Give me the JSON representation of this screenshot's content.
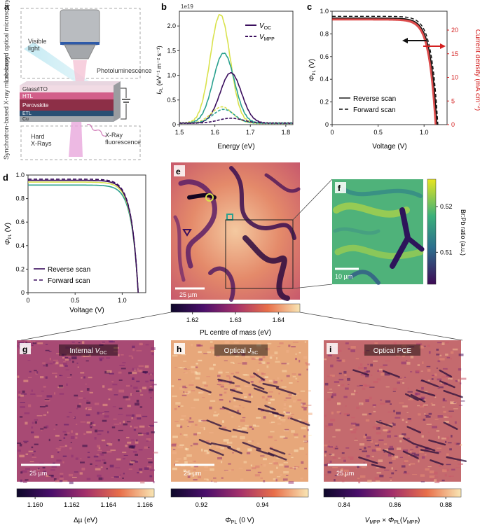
{
  "panels": {
    "a": "a",
    "b": "b",
    "c": "c",
    "d": "d",
    "e": "e",
    "f": "f",
    "g": "g",
    "h": "h",
    "i": "i"
  },
  "schematic": {
    "lab_label": "Lab-based optical microscopy",
    "sync_label": "Synchrotron-based X-ray microscopy",
    "visible_light": "Visible light",
    "photoluminescence": "Photoluminescence",
    "layers": [
      "Glass/ITO",
      "HTL",
      "Perovskite",
      "ETL",
      "Cu"
    ],
    "hard_xrays": "Hard X-Rays",
    "xray_fluor": "X-Ray fluorescence"
  },
  "colors": {
    "yellow_series": "#d9e24c",
    "teal_series": "#2aa18f",
    "purple_series": "#3b0f5e",
    "red_jv": "#d42020",
    "black": "#111111",
    "inferno_dark": "#1a0a2e",
    "inferno_light": "#f7e1b0"
  },
  "chart_data": [
    {
      "id": "b",
      "type": "line",
      "title": "",
      "xlabel": "Energy (eV)",
      "ylabel": "I_PL (eV⁻¹ m⁻² s⁻¹)",
      "exponent": "1e19",
      "xlim": [
        1.5,
        1.82
      ],
      "ylim": [
        0,
        2.3
      ],
      "xticks": [
        "1.5",
        "1.6",
        "1.7",
        "1.8"
      ],
      "yticks": [
        "0",
        "0.5",
        "1.0",
        "1.5",
        "2.0"
      ],
      "legend": [
        "V_OC",
        "V_MPP"
      ],
      "series": [
        {
          "name": "yellow-voc",
          "color": "#d9e24c",
          "dash": false,
          "peak": 2.2,
          "center": 1.615,
          "width": 0.028
        },
        {
          "name": "teal-voc",
          "color": "#2aa18f",
          "dash": false,
          "peak": 1.42,
          "center": 1.625,
          "width": 0.03
        },
        {
          "name": "purple-voc",
          "color": "#3b0f5e",
          "dash": false,
          "peak": 1.02,
          "center": 1.645,
          "width": 0.03
        },
        {
          "name": "yellow-vmpp",
          "color": "#d9e24c",
          "dash": true,
          "peak": 0.33,
          "center": 1.62,
          "width": 0.03
        },
        {
          "name": "teal-vmpp",
          "color": "#2aa18f",
          "dash": true,
          "peak": 0.28,
          "center": 1.625,
          "width": 0.03
        },
        {
          "name": "purple-vmpp",
          "color": "#3b0f5e",
          "dash": true,
          "peak": 0.1,
          "center": 1.645,
          "width": 0.035
        }
      ]
    },
    {
      "id": "c",
      "type": "line",
      "xlabel": "Voltage (V)",
      "ylabel": "Φ_PL (V)",
      "y2label": "Current density (mA cm⁻²)",
      "xlim": [
        0,
        1.25
      ],
      "ylim": [
        0,
        1.0
      ],
      "y2lim": [
        0,
        24
      ],
      "xticks": [
        "0",
        "0.5",
        "1.0"
      ],
      "yticks": [
        "0",
        "0.2",
        "0.4",
        "0.6",
        "0.8",
        "1.0"
      ],
      "y2ticks": [
        "0",
        "5",
        "10",
        "15",
        "20"
      ],
      "legend": [
        "Reverse scan",
        "Forward scan"
      ]
    },
    {
      "id": "d",
      "type": "line",
      "xlabel": "Voltage (V)",
      "ylabel": "Φ_PL (V)",
      "xlim": [
        0,
        1.25
      ],
      "ylim": [
        0,
        1.0
      ],
      "xticks": [
        "0",
        "0.5",
        "1.0"
      ],
      "yticks": [
        "0",
        "0.2",
        "0.4",
        "0.6",
        "0.8",
        "1.0"
      ],
      "legend": [
        "Reverse scan",
        "Forward scan"
      ]
    }
  ],
  "maps": {
    "e": {
      "scalebar": "25 µm",
      "cbar_label": "PL centre of mass (eV)",
      "cbar_ticks": [
        "1.62",
        "1.63",
        "1.64"
      ]
    },
    "f": {
      "scalebar": "10 µm",
      "cbar_label": "Br:Pb ratio (a.u.)",
      "cbar_ticks": [
        "0.52",
        "0.51"
      ]
    },
    "g": {
      "title": "Internal V_OC",
      "scalebar": "25 µm",
      "cbar_label": "Δµ (eV)",
      "cbar_ticks": [
        "1.160",
        "1.162",
        "1.164",
        "1.166"
      ]
    },
    "h": {
      "title": "Optical J_SC",
      "scalebar": "25 µm",
      "cbar_label": "Φ_PL (0 V)",
      "cbar_ticks": [
        "0.92",
        "0.94"
      ]
    },
    "i": {
      "title": "Optical PCE",
      "scalebar": "25 µm",
      "cbar_label": "V_MPP × Φ_PL(V_MPP)",
      "cbar_ticks": [
        "0.84",
        "0.86",
        "0.88"
      ]
    }
  }
}
